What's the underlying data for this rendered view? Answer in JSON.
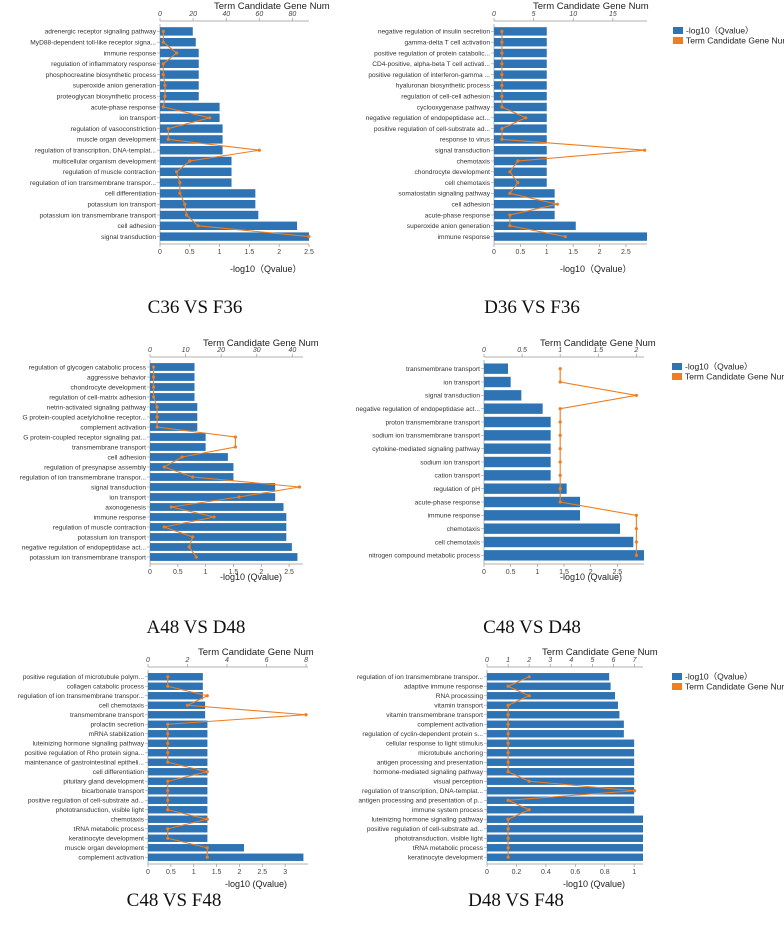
{
  "figure": {
    "captions": [
      "C36 VS F36",
      "D36 VS F36",
      "A48 VS D48",
      "C48 VS D48",
      "C48 VS F48",
      "D48 VS F48"
    ]
  },
  "colors": {
    "bar": "#2e74b5",
    "line": "#f07d1f",
    "axis": "#999999"
  },
  "chart_data": [
    {
      "type": "bar",
      "title": "Term Candidate Gene Num",
      "xlabel": "-log10（Qvalue）",
      "xlim": [
        0,
        2.5
      ],
      "xticks": [
        "0",
        "0.5",
        "1",
        "1.5",
        "2",
        "2.5"
      ],
      "x2lim": [
        0,
        90
      ],
      "x2ticks": [
        "0",
        "20",
        "40",
        "60",
        "80"
      ],
      "legend": [],
      "categories": [
        "adrenergic receptor signaling pathway",
        "MyD88-dependent toll-like receptor signa...",
        "immune response",
        "regulation of inflammatory response",
        "phosphocreatine biosynthetic process",
        "superoxide anion generation",
        "proteoglycan biosynthetic process",
        "acute-phase response",
        "ion transport",
        "regulation of vasoconstriction",
        "muscle organ development",
        "regulation of transcription, DNA-templat...",
        "multicellular organism development",
        "regulation of muscle contraction",
        "regulation of ion transmembrane transpor...",
        "cell differentiation",
        "potassium ion transport",
        "potassium ion transmembrane transport",
        "cell adhesion",
        "signal transduction"
      ],
      "series": [
        {
          "name": "-log10（Qvalue）",
          "kind": "bar",
          "values": [
            0.55,
            0.6,
            0.65,
            0.65,
            0.65,
            0.65,
            0.65,
            1.0,
            1.0,
            1.05,
            1.05,
            1.05,
            1.2,
            1.2,
            1.2,
            1.6,
            1.6,
            1.65,
            2.3,
            2.5
          ]
        },
        {
          "name": "Term Candidate Gene Num",
          "kind": "line",
          "values": [
            2,
            2,
            10,
            2,
            2,
            3,
            3,
            2,
            30,
            5,
            5,
            60,
            18,
            10,
            12,
            12,
            15,
            16,
            23,
            90
          ]
        }
      ]
    },
    {
      "type": "bar",
      "title": "Term Candidate Gene Num",
      "xlabel": "-log10（Qvalue）",
      "xlim": [
        0,
        2.9
      ],
      "xticks": [
        "0",
        "0.5",
        "1",
        "1.5",
        "2",
        "2.5"
      ],
      "x2lim": [
        0,
        19.3
      ],
      "x2ticks": [
        "0",
        "5",
        "10",
        "15"
      ],
      "legend": [
        "-log10（Qvalue）",
        "Term Candidate Gene Num"
      ],
      "categories": [
        "negative regulation of insulin secretion",
        "gamma-delta T cell activation",
        "positive regulation of protein catabolic...",
        "CD4-positive, alpha-beta T cell activati...",
        "positive regulation of interferon-gamma ...",
        "hyaluronan biosynthetic process",
        "regulation of cell-cell adhesion",
        "cyclooxygenase pathway",
        "negative regulation of endopeptidase act...",
        "positive regulation of cell-substrate ad...",
        "response to virus",
        "signal transduction",
        "chemotaxis",
        "chondrocyte development",
        "cell chemotaxis",
        "somatostatin signaling pathway",
        "cell adhesion",
        "acute-phase response",
        "superoxide anion generation",
        "immune response"
      ],
      "series": [
        {
          "name": "-log10（Qvalue）",
          "kind": "bar",
          "values": [
            1.0,
            1.0,
            1.0,
            1.0,
            1.0,
            1.0,
            1.0,
            1.0,
            1.0,
            1.0,
            1.0,
            1.0,
            1.0,
            1.0,
            1.0,
            1.15,
            1.15,
            1.15,
            1.55,
            2.9
          ]
        },
        {
          "name": "Term Candidate Gene Num",
          "kind": "line",
          "values": [
            1,
            1,
            1,
            1,
            1,
            1,
            1,
            1,
            4,
            1,
            1,
            19,
            3,
            2,
            3,
            2,
            8,
            2,
            2,
            9
          ]
        }
      ]
    },
    {
      "type": "bar",
      "title": "Term Candidate Gene Num",
      "xlabel": "-log10  (Qvalue)",
      "xlim": [
        0,
        2.75
      ],
      "xticks": [
        "0",
        "0.5",
        "1",
        "1.5",
        "2",
        "2.5"
      ],
      "x2lim": [
        0,
        43
      ],
      "x2ticks": [
        "0",
        "10",
        "20",
        "30",
        "40"
      ],
      "legend": [],
      "categories": [
        "regulation of glycogen catabolic process",
        "aggressive behavior",
        "chondrocyte development",
        "regulation of cell-matrix adhesion",
        "netrin-activated signaling pathway",
        "G protein-coupled acetylcholine receptor...",
        "complement activation",
        "G protein-coupled receptor signaling pat...",
        "transmembrane transport",
        "cell adhesion",
        "regulation of presynapse assembly",
        "regulation of ion transmembrane transpor...",
        "signal transduction",
        "ion transport",
        "axonogenesis",
        "immune response",
        "regulation of muscle contraction",
        "potassium ion transport",
        "negative regulation of endopeptidase act...",
        "potassium ion transmembrane transport"
      ],
      "series": [
        {
          "name": "-log10（Qvalue）",
          "kind": "bar",
          "values": [
            0.8,
            0.8,
            0.8,
            0.8,
            0.85,
            0.85,
            0.85,
            1.0,
            1.0,
            1.4,
            1.5,
            1.5,
            2.25,
            2.25,
            2.4,
            2.45,
            2.45,
            2.45,
            2.55,
            2.65
          ]
        },
        {
          "name": "Term Candidate Gene Num",
          "kind": "line",
          "values": [
            1,
            1,
            1,
            1,
            2,
            2,
            2,
            24,
            24,
            9,
            4,
            12,
            42,
            25,
            6,
            18,
            4,
            12,
            11,
            13
          ]
        }
      ]
    },
    {
      "type": "bar",
      "title": "Term Candidate Gene Num",
      "xlabel": "-log10  (Qvalue)",
      "xlim": [
        0,
        3.0
      ],
      "xticks": [
        "0",
        "0.5",
        "1",
        "1.5",
        "2",
        "2.5"
      ],
      "x2lim": [
        0,
        2.1
      ],
      "x2ticks": [
        "0",
        "0.5",
        "1",
        "1.5",
        "2"
      ],
      "legend": [
        "-log10（Qvalue）",
        "Term Candidate Gene Num"
      ],
      "categories": [
        "transmembrane transport",
        "ion transport",
        "signal transduction",
        "negative regulation of endopeptidase act...",
        "proton transmembrane transport",
        "sodium ion transmembrane transport",
        "cytokine-mediated signaling pathway",
        "sodium ion transport",
        "cation transport",
        "regulation of pH",
        "acute-phase response",
        "immune response",
        "chemotaxis",
        "cell chemotaxis",
        "nitrogen compound metabolic process"
      ],
      "series": [
        {
          "name": "-log10（Qvalue）",
          "kind": "bar",
          "values": [
            0.45,
            0.5,
            0.7,
            1.1,
            1.25,
            1.25,
            1.25,
            1.25,
            1.25,
            1.55,
            1.8,
            1.8,
            2.55,
            2.8,
            3.0
          ]
        },
        {
          "name": "Term Candidate Gene Num",
          "kind": "line",
          "values": [
            1,
            1,
            2,
            1,
            1,
            1,
            1,
            1,
            1,
            1,
            1,
            2,
            2,
            2,
            2
          ]
        }
      ]
    },
    {
      "type": "bar",
      "title": "Term Candidate Gene Num",
      "xlabel": "-log10  (Qvalue)",
      "xlim": [
        0,
        3.5
      ],
      "xticks": [
        "0",
        "0.5",
        "1",
        "1.5",
        "2",
        "2.5",
        "3"
      ],
      "x2lim": [
        0,
        8.1
      ],
      "x2ticks": [
        "0",
        "2",
        "4",
        "6",
        "8"
      ],
      "legend": [],
      "categories": [
        "positive regulation of microtubule polym...",
        "collagen catabolic process",
        "regulation of ion transmembrane transpor...",
        "cell chemotaxis",
        "transmembrane transport",
        "prolactin secretion",
        "mRNA stabilization",
        "luteinizing hormone signaling pathway",
        "positive regulation of Rho protein signa...",
        "maintenance of gastrointestinal epitheli...",
        "cell differentiation",
        "pituitary gland development",
        "bicarbonate transport",
        "positive regulation of cell-substrate ad...",
        "phototransduction, visible light",
        "chemotaxis",
        "tRNA metabolic process",
        "keratinocyte development",
        "muscle organ development",
        "complement activation"
      ],
      "series": [
        {
          "name": "-log10（Qvalue）",
          "kind": "bar",
          "values": [
            1.2,
            1.2,
            1.2,
            1.25,
            1.25,
            1.3,
            1.3,
            1.3,
            1.3,
            1.3,
            1.3,
            1.3,
            1.3,
            1.3,
            1.3,
            1.3,
            1.3,
            1.3,
            2.1,
            3.4
          ]
        },
        {
          "name": "Term Candidate Gene Num",
          "kind": "line",
          "values": [
            1,
            1,
            3,
            2,
            8,
            1,
            1,
            1,
            1,
            1,
            3,
            1,
            1,
            1,
            1,
            3,
            1,
            1,
            3,
            3
          ]
        }
      ]
    },
    {
      "type": "bar",
      "title": "Term Candidate Gene Num",
      "xlabel": "-log10  (Qvalue)",
      "xlim": [
        0,
        1.06
      ],
      "xticks": [
        "0",
        "0.2",
        "0.4",
        "0.6",
        "0.8",
        "1"
      ],
      "x2lim": [
        0,
        7.4
      ],
      "x2ticks": [
        "0",
        "1",
        "2",
        "3",
        "4",
        "5",
        "6",
        "7"
      ],
      "legend": [
        "-log10（Qvalue）",
        "Term Candidate Gene Num"
      ],
      "categories": [
        "regulation of ion transmembrane transpor...",
        "adaptive immune response",
        "RNA processing",
        "vitamin transport",
        "vitamin transmembrane transport",
        "complement activation",
        "regulation of cyclin-dependent protein s...",
        "cellular response to light stimulus",
        "microtubule anchoring",
        "antigen processing and presentation",
        "hormone-mediated signaling pathway",
        "visual perception",
        "regulation of transcription, DNA-templat...",
        "antigen processing and presentation of p...",
        "immune system process",
        "luteinizing hormone signaling pathway",
        "positive regulation of cell-substrate ad...",
        "phototransduction, visible light",
        "tRNA metabolic process",
        "keratinocyte development"
      ],
      "series": [
        {
          "name": "-log10（Qvalue）",
          "kind": "bar",
          "values": [
            0.83,
            0.84,
            0.87,
            0.89,
            0.9,
            0.93,
            0.93,
            1.0,
            1.0,
            1.0,
            1.0,
            1.0,
            1.0,
            1.0,
            1.0,
            1.06,
            1.06,
            1.06,
            1.06,
            1.06
          ]
        },
        {
          "name": "Term Candidate Gene Num",
          "kind": "line",
          "values": [
            2,
            1,
            2,
            1,
            1,
            1,
            1,
            1,
            1,
            1,
            1,
            2,
            7,
            1,
            2,
            1,
            1,
            1,
            1,
            1
          ]
        }
      ]
    }
  ]
}
